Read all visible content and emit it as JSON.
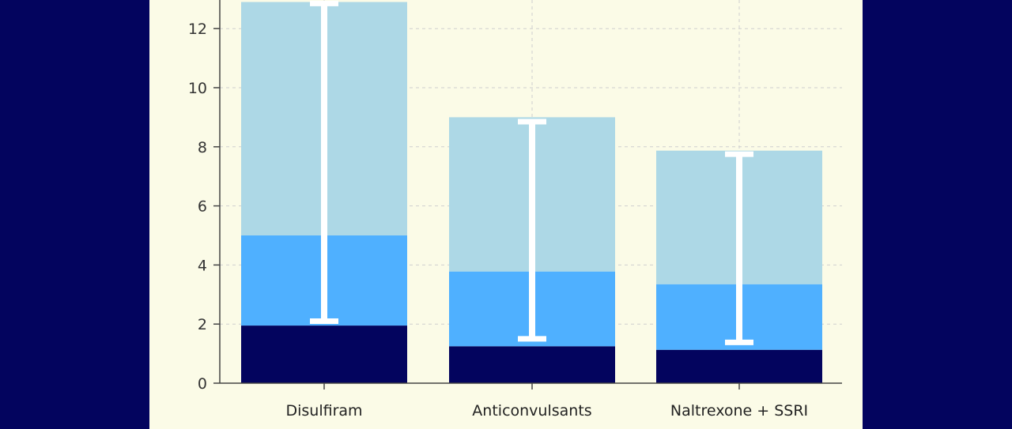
{
  "chart_data": {
    "type": "bar",
    "stacked": true,
    "categories": [
      "Disulfiram",
      "Anticonvulsants",
      "Naltrexone + SSRI"
    ],
    "series": [
      {
        "values": [
          1.95,
          1.25,
          1.13
        ],
        "color": "#03045e"
      },
      {
        "values": [
          3.05,
          2.53,
          2.22
        ],
        "color": "#4fb0ff"
      },
      {
        "values": [
          7.9,
          5.22,
          4.52
        ],
        "color": "#add8e6"
      }
    ],
    "error_bars": [
      {
        "low": 2.1,
        "high": 12.85
      },
      {
        "low": 1.5,
        "high": 8.85
      },
      {
        "low": 1.38,
        "high": 7.75
      }
    ],
    "y_ticks": [
      "0",
      "2",
      "4",
      "6",
      "8",
      "10",
      "12"
    ],
    "ylim": [
      0,
      13
    ],
    "grid": true,
    "title": "",
    "xlabel": "",
    "ylabel": "",
    "colors": {
      "page_background": "#03045e",
      "plot_background": "#fbfbe7",
      "grid": "#cfcfcf",
      "axis": "#444444",
      "error_bar": "#ffffff"
    }
  }
}
